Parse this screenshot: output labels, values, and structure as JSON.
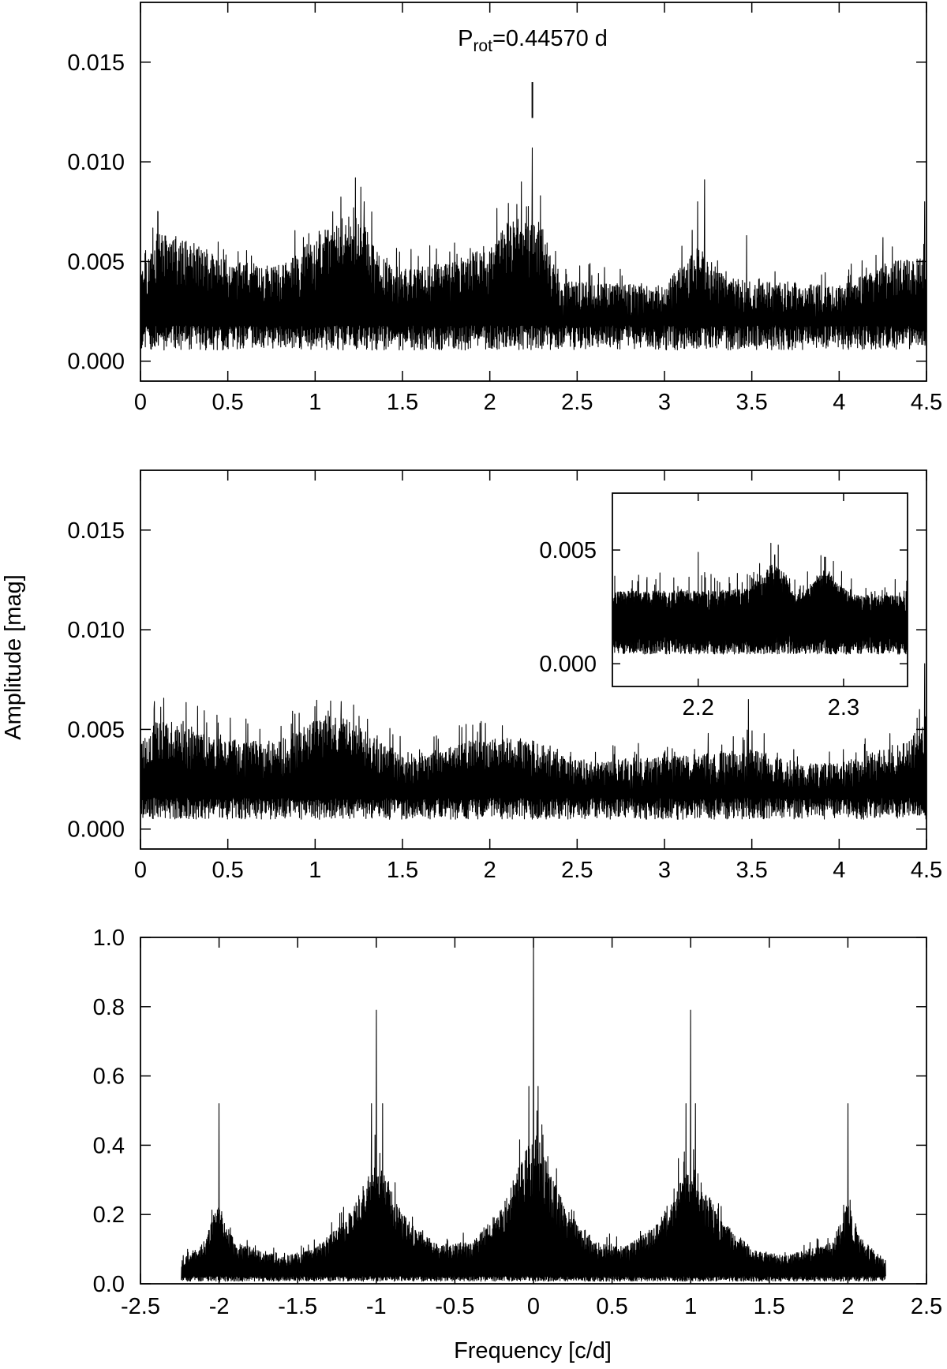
{
  "figure": {
    "ylabel": "Amplitude [mag]",
    "xlabel": "Frequency [c/d]",
    "annotation": {
      "main": "P",
      "sub": "rot",
      "rest": "=0.44570 d"
    }
  },
  "chart_data": [
    {
      "id": "panel-top",
      "type": "line",
      "title": "",
      "xlabel": "",
      "ylabel": "Amplitude [mag]",
      "xlim": [
        0,
        4.5
      ],
      "ylim": [
        -0.001,
        0.018
      ],
      "xticks": [
        0,
        0.5,
        1,
        1.5,
        2,
        2.5,
        3,
        3.5,
        4,
        4.5
      ],
      "xtick_labels": [
        "0",
        "0.5",
        "1",
        "1.5",
        "2",
        "2.5",
        "3",
        "3.5",
        "4",
        "4.5"
      ],
      "yticks": [
        0,
        0.005,
        0.01,
        0.015
      ],
      "ytick_labels": [
        "0.000",
        "0.005",
        "0.010",
        "0.015"
      ],
      "grid": false,
      "annotation": {
        "text": "P_rot=0.44570 d",
        "marker_x": 2.2437,
        "marker_y_range": [
          0.0122,
          0.014
        ]
      },
      "series": [
        {
          "noise_floor": 0.0016,
          "envelope": [
            {
              "x": 0,
              "y": 0.0045
            },
            {
              "x": 0.1,
              "y": 0.0065
            },
            {
              "x": 0.3,
              "y": 0.006
            },
            {
              "x": 0.5,
              "y": 0.005
            },
            {
              "x": 0.8,
              "y": 0.0048
            },
            {
              "x": 1.0,
              "y": 0.0062
            },
            {
              "x": 1.15,
              "y": 0.0072
            },
            {
              "x": 1.25,
              "y": 0.0075
            },
            {
              "x": 1.35,
              "y": 0.0055
            },
            {
              "x": 1.5,
              "y": 0.0046
            },
            {
              "x": 1.8,
              "y": 0.005
            },
            {
              "x": 2.0,
              "y": 0.006
            },
            {
              "x": 2.15,
              "y": 0.0072
            },
            {
              "x": 2.3,
              "y": 0.0068
            },
            {
              "x": 2.4,
              "y": 0.004
            },
            {
              "x": 3.0,
              "y": 0.0038
            },
            {
              "x": 3.2,
              "y": 0.0058
            },
            {
              "x": 3.35,
              "y": 0.0042
            },
            {
              "x": 3.5,
              "y": 0.004
            },
            {
              "x": 4.0,
              "y": 0.0038
            },
            {
              "x": 4.3,
              "y": 0.005
            },
            {
              "x": 4.5,
              "y": 0.0052
            }
          ],
          "peaks": [
            {
              "x": 0.1,
              "y": 0.0075
            },
            {
              "x": 1.23,
              "y": 0.0092
            },
            {
              "x": 1.28,
              "y": 0.008
            },
            {
              "x": 1.1,
              "y": 0.0075
            },
            {
              "x": 2.18,
              "y": 0.009
            },
            {
              "x": 2.2437,
              "y": 0.0107
            },
            {
              "x": 2.29,
              "y": 0.0083
            },
            {
              "x": 3.19,
              "y": 0.008
            },
            {
              "x": 3.23,
              "y": 0.0091
            },
            {
              "x": 3.47,
              "y": 0.0063
            },
            {
              "x": 4.25,
              "y": 0.0062
            },
            {
              "x": 4.49,
              "y": 0.008
            }
          ]
        }
      ]
    },
    {
      "id": "panel-middle",
      "type": "line",
      "title": "",
      "xlabel": "",
      "ylabel": "Amplitude [mag]",
      "xlim": [
        0,
        4.5
      ],
      "ylim": [
        -0.001,
        0.018
      ],
      "xticks": [
        0,
        0.5,
        1,
        1.5,
        2,
        2.5,
        3,
        3.5,
        4,
        4.5
      ],
      "xtick_labels": [
        "0",
        "0.5",
        "1",
        "1.5",
        "2",
        "2.5",
        "3",
        "3.5",
        "4",
        "4.5"
      ],
      "yticks": [
        0,
        0.005,
        0.01,
        0.015
      ],
      "ytick_labels": [
        "0.000",
        "0.005",
        "0.010",
        "0.015"
      ],
      "grid": false,
      "series": [
        {
          "noise_floor": 0.0014,
          "envelope": [
            {
              "x": 0,
              "y": 0.0045
            },
            {
              "x": 0.1,
              "y": 0.0055
            },
            {
              "x": 0.5,
              "y": 0.0045
            },
            {
              "x": 0.8,
              "y": 0.0045
            },
            {
              "x": 1.05,
              "y": 0.0057
            },
            {
              "x": 1.2,
              "y": 0.0055
            },
            {
              "x": 1.4,
              "y": 0.0042
            },
            {
              "x": 1.6,
              "y": 0.0036
            },
            {
              "x": 1.9,
              "y": 0.0045
            },
            {
              "x": 2.2,
              "y": 0.0046
            },
            {
              "x": 2.5,
              "y": 0.0035
            },
            {
              "x": 3.0,
              "y": 0.0036
            },
            {
              "x": 3.5,
              "y": 0.004
            },
            {
              "x": 3.8,
              "y": 0.0033
            },
            {
              "x": 4.0,
              "y": 0.0033
            },
            {
              "x": 4.4,
              "y": 0.0045
            },
            {
              "x": 4.5,
              "y": 0.0055
            }
          ],
          "peaks": [
            {
              "x": 0.08,
              "y": 0.0064
            },
            {
              "x": 1.15,
              "y": 0.0064
            },
            {
              "x": 1.95,
              "y": 0.0054
            },
            {
              "x": 3.25,
              "y": 0.0048
            },
            {
              "x": 3.48,
              "y": 0.0065
            },
            {
              "x": 4.46,
              "y": 0.006
            },
            {
              "x": 4.49,
              "y": 0.0083
            }
          ]
        }
      ]
    },
    {
      "id": "panel-inset",
      "type": "line",
      "title": "",
      "xlabel": "",
      "ylabel": "",
      "xlim": [
        2.141,
        2.344
      ],
      "ylim": [
        -0.001,
        0.0075
      ],
      "xticks": [
        2.2,
        2.3
      ],
      "xtick_labels": [
        "2.2",
        "2.3"
      ],
      "yticks": [
        0,
        0.005
      ],
      "ytick_labels": [
        "0.000",
        "0.005"
      ],
      "grid": false,
      "series": [
        {
          "noise_floor": 0.0012,
          "envelope": [
            {
              "x": 2.141,
              "y": 0.0032
            },
            {
              "x": 2.2,
              "y": 0.0032
            },
            {
              "x": 2.235,
              "y": 0.0033
            },
            {
              "x": 2.25,
              "y": 0.0044
            },
            {
              "x": 2.26,
              "y": 0.004
            },
            {
              "x": 2.27,
              "y": 0.0028
            },
            {
              "x": 2.28,
              "y": 0.0038
            },
            {
              "x": 2.29,
              "y": 0.004
            },
            {
              "x": 2.305,
              "y": 0.003
            },
            {
              "x": 2.344,
              "y": 0.003
            }
          ],
          "peaks": [
            {
              "x": 2.2,
              "y": 0.0049
            },
            {
              "x": 2.25,
              "y": 0.0053
            },
            {
              "x": 2.293,
              "y": 0.0045
            }
          ]
        }
      ]
    },
    {
      "id": "panel-bottom",
      "type": "line",
      "title": "",
      "xlabel": "Frequency [c/d]",
      "ylabel": "",
      "xlim": [
        -2.5,
        2.5
      ],
      "ylim": [
        0,
        1.0
      ],
      "xticks": [
        -2.5,
        -2,
        -1.5,
        -1,
        -0.5,
        0,
        0.5,
        1,
        1.5,
        2,
        2.5
      ],
      "xtick_labels": [
        "-2.5",
        "-2",
        "-1.5",
        "-1",
        "-0.5",
        "0",
        "0.5",
        "1",
        "1.5",
        "2",
        "2.5"
      ],
      "yticks": [
        0,
        0.2,
        0.4,
        0.6,
        0.8,
        1.0
      ],
      "ytick_labels": [
        "0.0",
        "0.2",
        "0.4",
        "0.6",
        "0.8",
        "1.0"
      ],
      "grid": false,
      "series": [
        {
          "x_range": [
            -2.24,
            2.24
          ],
          "noise_floor": 0.02,
          "envelope": [
            {
              "x": -2.24,
              "y": 0.07
            },
            {
              "x": -2.1,
              "y": 0.12
            },
            {
              "x": -2.0,
              "y": 0.23
            },
            {
              "x": -1.9,
              "y": 0.12
            },
            {
              "x": -1.6,
              "y": 0.08
            },
            {
              "x": -1.4,
              "y": 0.1
            },
            {
              "x": -1.2,
              "y": 0.18
            },
            {
              "x": -1.0,
              "y": 0.36
            },
            {
              "x": -0.8,
              "y": 0.18
            },
            {
              "x": -0.6,
              "y": 0.11
            },
            {
              "x": -0.4,
              "y": 0.12
            },
            {
              "x": -0.2,
              "y": 0.22
            },
            {
              "x": 0.0,
              "y": 0.45
            },
            {
              "x": 0.2,
              "y": 0.22
            },
            {
              "x": 0.4,
              "y": 0.12
            },
            {
              "x": 0.6,
              "y": 0.11
            },
            {
              "x": 0.8,
              "y": 0.18
            },
            {
              "x": 1.0,
              "y": 0.36
            },
            {
              "x": 1.2,
              "y": 0.18
            },
            {
              "x": 1.4,
              "y": 0.1
            },
            {
              "x": 1.6,
              "y": 0.08
            },
            {
              "x": 1.9,
              "y": 0.12
            },
            {
              "x": 2.0,
              "y": 0.23
            },
            {
              "x": 2.1,
              "y": 0.12
            },
            {
              "x": 2.24,
              "y": 0.07
            }
          ],
          "peaks": [
            {
              "x": -2.0,
              "y": 0.52
            },
            {
              "x": -1.0,
              "y": 0.79
            },
            {
              "x": -1.03,
              "y": 0.52
            },
            {
              "x": -0.96,
              "y": 0.52
            },
            {
              "x": 0.0,
              "y": 1.0
            },
            {
              "x": -0.03,
              "y": 0.57
            },
            {
              "x": 0.03,
              "y": 0.57
            },
            {
              "x": 1.0,
              "y": 0.79
            },
            {
              "x": 0.97,
              "y": 0.52
            },
            {
              "x": 1.03,
              "y": 0.52
            },
            {
              "x": 2.0,
              "y": 0.52
            }
          ]
        }
      ]
    }
  ]
}
